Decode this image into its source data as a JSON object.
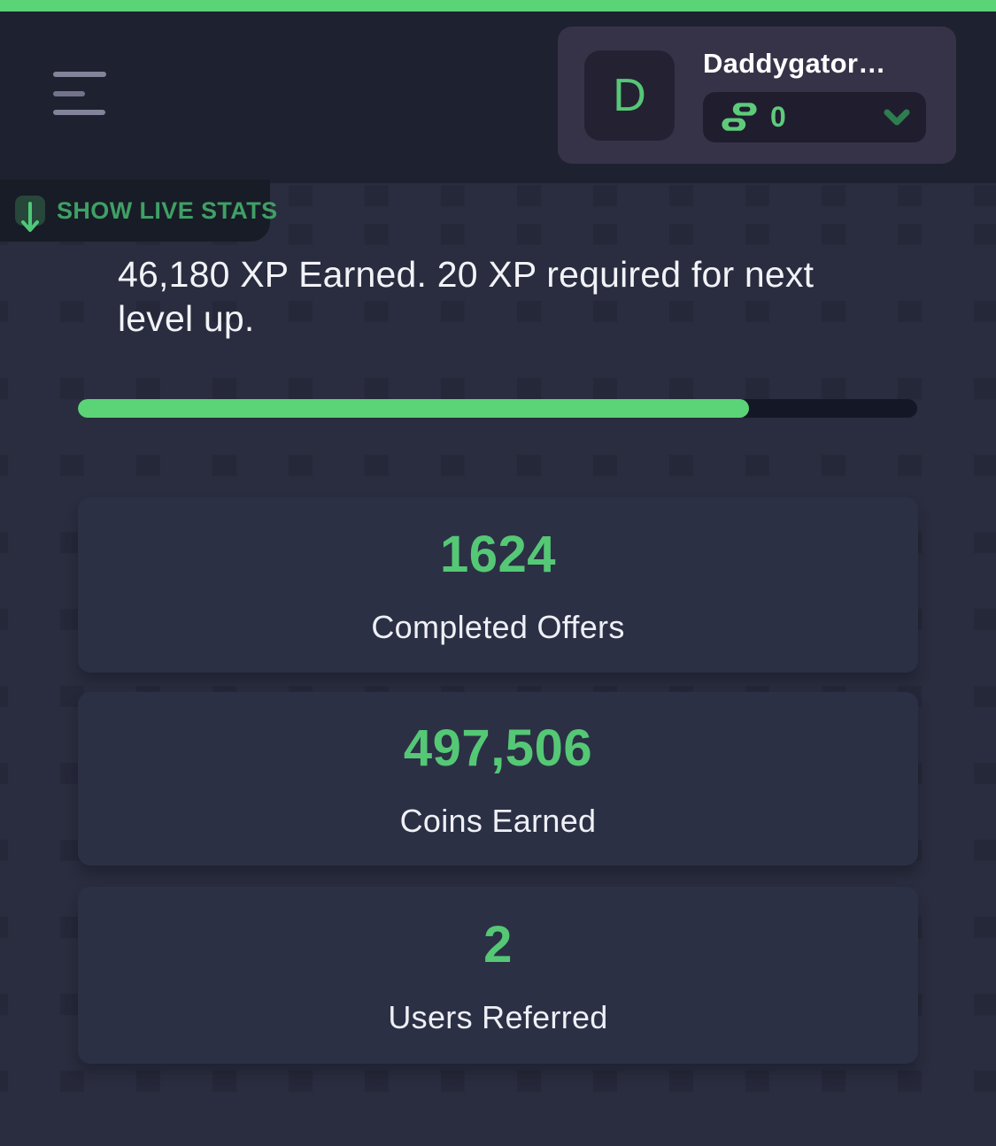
{
  "theme": {
    "accent": "#5bd377",
    "accent_dark": "#3fa065",
    "chevron_green": "#2e7d4f",
    "arrow_green": "#4fc878",
    "number_green": "#55c876",
    "header_bg": "#1e2130",
    "page_bg": "#2a2d3f",
    "card_bg": "#2c3045",
    "band_bg": "#181c27",
    "usercard_bg": "#363349",
    "pill_bg": "#201d2f",
    "avatar_bg": "#242232",
    "track_bg": "#141726",
    "text": "#f2f3f7"
  },
  "header": {
    "menu_icon": "hamburger-icon",
    "user": {
      "avatar_letter": "D",
      "name": "Daddygator…",
      "balance": "0",
      "currency_icon": "coins-icon",
      "expand_icon": "chevron-down-icon"
    }
  },
  "stats_toggle": {
    "label": "SHOW LIVE STATS",
    "icon": "arrow-down-icon"
  },
  "xp": {
    "message": "46,180 XP Earned. 20 XP required for next level up.",
    "progress_percent": 80
  },
  "stat_cards": [
    {
      "value": "1624",
      "label": "Completed Offers"
    },
    {
      "value": "497,506",
      "label": "Coins Earned"
    },
    {
      "value": "2",
      "label": "Users Referred"
    }
  ]
}
